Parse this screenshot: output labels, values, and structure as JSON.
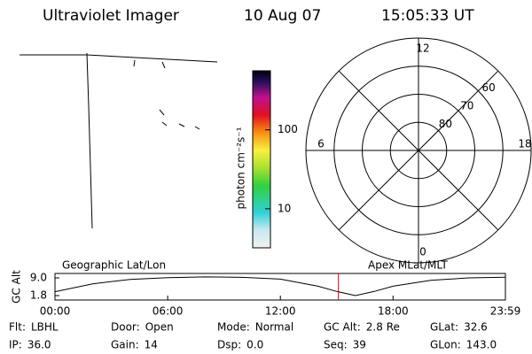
{
  "header": {
    "title": "Ultraviolet Imager",
    "date": "10 Aug 07",
    "time": "15:05:33 UT"
  },
  "colorbar": {
    "label": "photon cm⁻²s⁻¹",
    "scale": "log",
    "lim": [
      3.2,
      560
    ],
    "ticks": [
      100,
      10
    ]
  },
  "polar": {
    "rlim": [
      90,
      50
    ],
    "mlt_labels": [
      12,
      6,
      0,
      18
    ],
    "lat_labels": [
      80,
      70,
      60
    ]
  },
  "timeline": {
    "left_label": "Geographic Lat/Lon",
    "right_label": "Apex MLat/MLT",
    "ylabel": "GC Alt",
    "ylim": [
      0,
      10.8
    ],
    "yticks": [
      {
        "value": 9.0,
        "label": "9.0"
      },
      {
        "value": 1.8,
        "label": "1.8"
      }
    ],
    "xlim": [
      0,
      23.98
    ],
    "xticks": [
      {
        "value": 0,
        "label": "00:00"
      },
      {
        "value": 6,
        "label": "06:00"
      },
      {
        "value": 12,
        "label": "12:00"
      },
      {
        "value": 18,
        "label": "18:00"
      },
      {
        "value": 23.98,
        "label": "23:59"
      }
    ],
    "x": [
      0,
      2,
      4,
      6,
      8,
      10,
      12,
      14,
      15,
      16,
      17,
      18,
      20,
      22,
      23.98
    ],
    "values": [
      3.4,
      6.6,
      8.4,
      9.1,
      9.4,
      9.2,
      8.5,
      5.6,
      3.5,
      1.8,
      3.5,
      5.6,
      8.0,
      9.0,
      9.3
    ],
    "current_time": 15.09,
    "marker_color": "#e00000"
  },
  "status": [
    [
      {
        "label": "Flt:",
        "value": "LBHL"
      },
      {
        "label": "Door:",
        "value": "Open"
      },
      {
        "label": "Mode:",
        "value": "Normal"
      },
      {
        "label": "GC Alt:",
        "value": "2.8 Re"
      },
      {
        "label": "GLat:",
        "value": "32.6"
      }
    ],
    [
      {
        "label": "IP:",
        "value": "36.0"
      },
      {
        "label": "Gain:",
        "value": "14"
      },
      {
        "label": "Dsp:",
        "value": "0.0"
      },
      {
        "label": "Seq:",
        "value": "39"
      },
      {
        "label": "GLon:",
        "value": "143.0"
      }
    ]
  ]
}
